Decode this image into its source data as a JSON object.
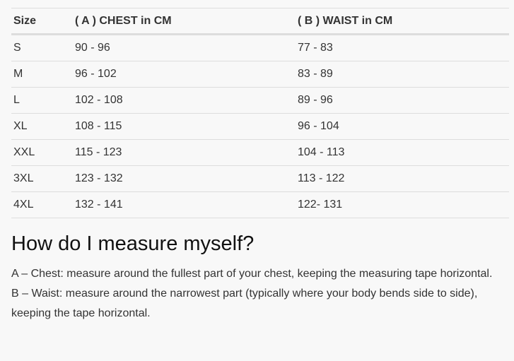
{
  "table": {
    "headers": [
      "Size",
      "( A ) CHEST in CM",
      "( B ) WAIST in CM"
    ],
    "rows": [
      [
        "S",
        "90 - 96",
        "77 - 83"
      ],
      [
        "M",
        "96 - 102",
        "83 - 89"
      ],
      [
        "L",
        "102 - 108",
        "89 - 96"
      ],
      [
        "XL",
        "108 - 115",
        "96 - 104"
      ],
      [
        "XXL",
        "115 - 123",
        "104 - 113"
      ],
      [
        "3XL",
        "123 - 132",
        "113 - 122"
      ],
      [
        "4XL",
        "132 - 141",
        "122- 131"
      ]
    ]
  },
  "heading": "How do I measure myself?",
  "paragraphs": [
    "A – Chest: measure around the fullest part of your chest, keeping the measuring tape horizontal.",
    "B – Waist: measure around the narrowest part (typically where your body bends side to side), keeping the tape horizontal."
  ]
}
